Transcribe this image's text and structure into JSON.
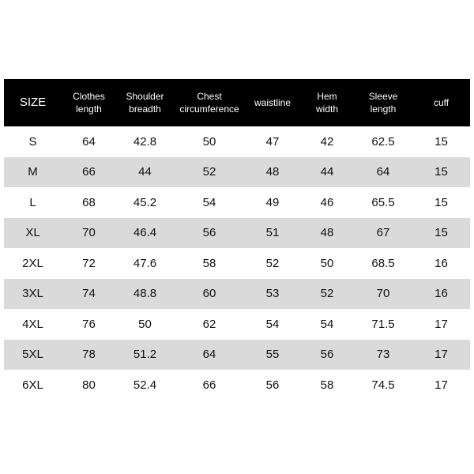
{
  "table": {
    "header": [
      [
        "SIZE"
      ],
      [
        "Clothes",
        "length"
      ],
      [
        "Shoulder",
        "breadth"
      ],
      [
        "Chest",
        "circumference"
      ],
      [
        "waistline"
      ],
      [
        "Hem",
        "width"
      ],
      [
        "Sleeve",
        "length"
      ],
      [
        "cuff"
      ]
    ],
    "rows": [
      [
        "S",
        64,
        42.8,
        50,
        47,
        42,
        62.5,
        15
      ],
      [
        "M",
        66,
        44,
        52,
        48,
        44,
        64,
        15
      ],
      [
        "L",
        68,
        45.2,
        54,
        49,
        46,
        65.5,
        15
      ],
      [
        "XL",
        70,
        46.4,
        56,
        51,
        48,
        67,
        15
      ],
      [
        "2XL",
        72,
        47.6,
        58,
        52,
        50,
        68.5,
        16
      ],
      [
        "3XL",
        74,
        48.8,
        60,
        53,
        52,
        70,
        16
      ],
      [
        "4XL",
        76,
        50,
        62,
        54,
        54,
        71.5,
        17
      ],
      [
        "5XL",
        78,
        51.2,
        64,
        55,
        56,
        73,
        17
      ],
      [
        "6XL",
        80,
        52.4,
        66,
        56,
        58,
        74.5,
        17
      ]
    ]
  }
}
